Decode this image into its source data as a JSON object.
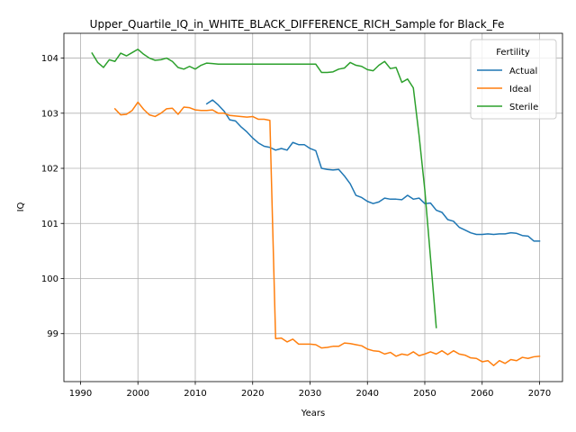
{
  "chart_data": {
    "type": "line",
    "title": "Upper_Quartile_IQ_in_WHITE_BLACK_DIFFERENCE_RICH_Sample for Black_Fe",
    "xlabel": "Years",
    "ylabel": "IQ",
    "xlim": [
      1987.1,
      2074.0
    ],
    "ylim": [
      98.13,
      104.45
    ],
    "x_ticks": [
      1990,
      2000,
      2010,
      2020,
      2030,
      2040,
      2050,
      2060,
      2070
    ],
    "y_ticks": [
      99,
      100,
      101,
      102,
      103,
      104
    ],
    "grid": true,
    "legend": {
      "title": "Fertility",
      "placement": "top-right"
    },
    "series": [
      {
        "name": "Actual",
        "color": "#1f77b4",
        "points": [
          [
            2012,
            103.17
          ],
          [
            2013,
            103.24
          ],
          [
            2014,
            103.15
          ],
          [
            2015,
            103.04
          ],
          [
            2016,
            102.88
          ],
          [
            2017,
            102.86
          ],
          [
            2018,
            102.75
          ],
          [
            2019,
            102.66
          ],
          [
            2020,
            102.55
          ],
          [
            2021,
            102.46
          ],
          [
            2022,
            102.4
          ],
          [
            2023,
            102.38
          ],
          [
            2024,
            102.33
          ],
          [
            2025,
            102.36
          ],
          [
            2026,
            102.33
          ],
          [
            2027,
            102.47
          ],
          [
            2028,
            102.43
          ],
          [
            2029,
            102.43
          ],
          [
            2030,
            102.36
          ],
          [
            2031,
            102.32
          ],
          [
            2032,
            102.0
          ],
          [
            2033,
            101.98
          ],
          [
            2034,
            101.97
          ],
          [
            2035,
            101.98
          ],
          [
            2036,
            101.86
          ],
          [
            2037,
            101.72
          ],
          [
            2038,
            101.51
          ],
          [
            2039,
            101.47
          ],
          [
            2040,
            101.4
          ],
          [
            2041,
            101.36
          ],
          [
            2042,
            101.39
          ],
          [
            2043,
            101.46
          ],
          [
            2044,
            101.44
          ],
          [
            2045,
            101.44
          ],
          [
            2046,
            101.43
          ],
          [
            2047,
            101.51
          ],
          [
            2048,
            101.44
          ],
          [
            2049,
            101.46
          ],
          [
            2050,
            101.36
          ],
          [
            2051,
            101.37
          ],
          [
            2052,
            101.24
          ],
          [
            2053,
            101.2
          ],
          [
            2054,
            101.07
          ],
          [
            2055,
            101.04
          ],
          [
            2056,
            100.93
          ],
          [
            2057,
            100.88
          ],
          [
            2058,
            100.83
          ],
          [
            2059,
            100.8
          ],
          [
            2060,
            100.8
          ],
          [
            2061,
            100.81
          ],
          [
            2062,
            100.8
          ],
          [
            2063,
            100.81
          ],
          [
            2064,
            100.81
          ],
          [
            2065,
            100.83
          ],
          [
            2066,
            100.82
          ],
          [
            2067,
            100.78
          ],
          [
            2068,
            100.77
          ],
          [
            2069,
            100.68
          ],
          [
            2070,
            100.68
          ]
        ]
      },
      {
        "name": "Ideal",
        "color": "#ff7f0e",
        "points": [
          [
            1996,
            103.08
          ],
          [
            1997,
            102.97
          ],
          [
            1998,
            102.98
          ],
          [
            1999,
            103.05
          ],
          [
            2000,
            103.2
          ],
          [
            2001,
            103.07
          ],
          [
            2002,
            102.97
          ],
          [
            2003,
            102.94
          ],
          [
            2004,
            103.0
          ],
          [
            2005,
            103.08
          ],
          [
            2006,
            103.09
          ],
          [
            2007,
            102.98
          ],
          [
            2008,
            103.11
          ],
          [
            2009,
            103.1
          ],
          [
            2010,
            103.06
          ],
          [
            2011,
            103.05
          ],
          [
            2012,
            103.05
          ],
          [
            2013,
            103.06
          ],
          [
            2014,
            103.0
          ],
          [
            2015,
            103.0
          ],
          [
            2016,
            102.96
          ],
          [
            2017,
            102.95
          ],
          [
            2018,
            102.94
          ],
          [
            2019,
            102.93
          ],
          [
            2020,
            102.94
          ],
          [
            2021,
            102.89
          ],
          [
            2022,
            102.89
          ],
          [
            2023,
            102.87
          ],
          [
            2024,
            98.91
          ],
          [
            2025,
            98.92
          ],
          [
            2026,
            98.85
          ],
          [
            2027,
            98.9
          ],
          [
            2028,
            98.81
          ],
          [
            2029,
            98.81
          ],
          [
            2030,
            98.81
          ],
          [
            2031,
            98.8
          ],
          [
            2032,
            98.74
          ],
          [
            2033,
            98.75
          ],
          [
            2034,
            98.77
          ],
          [
            2035,
            98.77
          ],
          [
            2036,
            98.83
          ],
          [
            2037,
            98.82
          ],
          [
            2038,
            98.8
          ],
          [
            2039,
            98.78
          ],
          [
            2040,
            98.72
          ],
          [
            2041,
            98.69
          ],
          [
            2042,
            98.68
          ],
          [
            2043,
            98.63
          ],
          [
            2044,
            98.66
          ],
          [
            2045,
            98.59
          ],
          [
            2046,
            98.63
          ],
          [
            2047,
            98.61
          ],
          [
            2048,
            98.67
          ],
          [
            2049,
            98.6
          ],
          [
            2050,
            98.63
          ],
          [
            2051,
            98.67
          ],
          [
            2052,
            98.63
          ],
          [
            2053,
            98.69
          ],
          [
            2054,
            98.62
          ],
          [
            2055,
            98.69
          ],
          [
            2056,
            98.63
          ],
          [
            2057,
            98.61
          ],
          [
            2058,
            98.56
          ],
          [
            2059,
            98.55
          ],
          [
            2060,
            98.49
          ],
          [
            2061,
            98.51
          ],
          [
            2062,
            98.42
          ],
          [
            2063,
            98.51
          ],
          [
            2064,
            98.46
          ],
          [
            2065,
            98.53
          ],
          [
            2066,
            98.51
          ],
          [
            2067,
            98.57
          ],
          [
            2068,
            98.55
          ],
          [
            2069,
            98.58
          ],
          [
            2070,
            98.59
          ]
        ]
      },
      {
        "name": "Sterile",
        "color": "#2ca02c",
        "points": [
          [
            1992,
            104.09
          ],
          [
            1993,
            103.92
          ],
          [
            1994,
            103.83
          ],
          [
            1995,
            103.97
          ],
          [
            1996,
            103.94
          ],
          [
            1997,
            104.09
          ],
          [
            1998,
            104.04
          ],
          [
            1999,
            104.1
          ],
          [
            2000,
            104.16
          ],
          [
            2001,
            104.07
          ],
          [
            2002,
            104.0
          ],
          [
            2003,
            103.96
          ],
          [
            2004,
            103.97
          ],
          [
            2005,
            104.0
          ],
          [
            2006,
            103.94
          ],
          [
            2007,
            103.83
          ],
          [
            2008,
            103.8
          ],
          [
            2009,
            103.85
          ],
          [
            2010,
            103.8
          ],
          [
            2011,
            103.87
          ],
          [
            2012,
            103.91
          ],
          [
            2013,
            103.9
          ],
          [
            2014,
            103.89
          ],
          [
            2015,
            103.89
          ],
          [
            2020,
            103.89
          ],
          [
            2025,
            103.89
          ],
          [
            2030,
            103.89
          ],
          [
            2031,
            103.89
          ],
          [
            2032,
            103.74
          ],
          [
            2033,
            103.74
          ],
          [
            2034,
            103.75
          ],
          [
            2035,
            103.8
          ],
          [
            2036,
            103.82
          ],
          [
            2037,
            103.92
          ],
          [
            2038,
            103.87
          ],
          [
            2039,
            103.85
          ],
          [
            2040,
            103.79
          ],
          [
            2041,
            103.77
          ],
          [
            2042,
            103.87
          ],
          [
            2043,
            103.94
          ],
          [
            2044,
            103.81
          ],
          [
            2045,
            103.83
          ],
          [
            2046,
            103.56
          ],
          [
            2047,
            103.62
          ],
          [
            2048,
            103.46
          ],
          [
            2049,
            102.6
          ],
          [
            2050,
            101.61
          ],
          [
            2051,
            100.37
          ],
          [
            2052,
            99.11
          ]
        ]
      }
    ]
  }
}
